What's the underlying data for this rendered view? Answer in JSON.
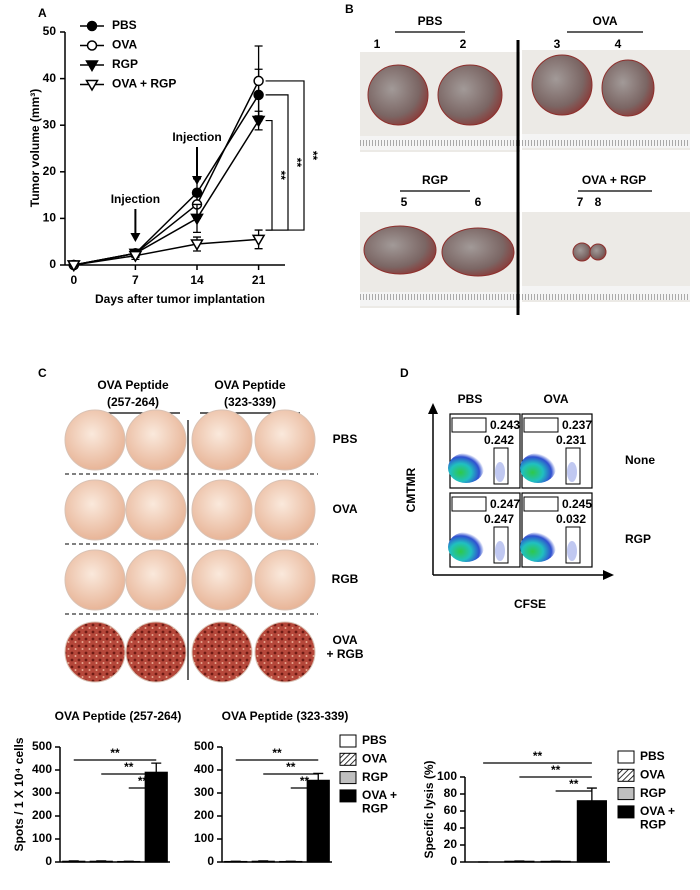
{
  "figure_labels": [
    "A",
    "B",
    "C",
    "D"
  ],
  "chart_data": [
    {
      "type": "line",
      "xlabel": "Days after tumor implantation",
      "ylabel": "Tumor volume (mm³)",
      "x": [
        0,
        7,
        14,
        21
      ],
      "xlim": [
        -1,
        24
      ],
      "xticks": [
        0,
        7,
        14,
        21
      ],
      "ylim": [
        0,
        50
      ],
      "yticks": [
        0,
        10,
        20,
        30,
        40,
        50
      ],
      "legend": "upper left",
      "series": [
        {
          "name": "PBS",
          "color": "#000000",
          "marker": "circle",
          "filled": true,
          "values": [
            0,
            2.5,
            15.5,
            36.5
          ],
          "errors": [
            0.3,
            0.8,
            3,
            5.5
          ]
        },
        {
          "name": "OVA",
          "color": "#000000",
          "marker": "circle",
          "filled": false,
          "values": [
            0,
            2.5,
            13,
            39.5
          ],
          "errors": [
            0.3,
            0.8,
            3,
            7.5
          ]
        },
        {
          "name": "RGP",
          "color": "#000000",
          "marker": "triangle-down",
          "filled": true,
          "values": [
            0,
            2.5,
            10,
            31
          ],
          "errors": [
            0.3,
            0.8,
            3,
            2
          ]
        },
        {
          "name": "OVA + RGP",
          "color": "#000000",
          "marker": "triangle-down",
          "filled": false,
          "values": [
            0,
            2,
            4.5,
            5.5
          ],
          "errors": [
            0.3,
            0.8,
            1.5,
            2
          ]
        }
      ],
      "annotations": [
        {
          "text": "Injection",
          "x": 7
        },
        {
          "text": "Injection",
          "x": 14
        }
      ],
      "significance": [
        "**",
        "**",
        "**"
      ]
    },
    {
      "type": "bar",
      "title": "OVA Peptide (257-264)",
      "ylabel": "Spots / 1 X 10⁴ cells",
      "categories": [
        "PBS",
        "OVA",
        "RGP",
        "OVA + RGP"
      ],
      "values": [
        3,
        3,
        2,
        390
      ],
      "errors": [
        2,
        2,
        1,
        40
      ],
      "colors": [
        "#ffffff",
        "#ffffff",
        "#bfbfbf",
        "#000000"
      ],
      "hatch": [
        false,
        true,
        false,
        false
      ],
      "ylim": [
        0,
        500
      ],
      "yticks": [
        0,
        100,
        200,
        300,
        400,
        500
      ],
      "significance": [
        "**",
        "**",
        "**"
      ]
    },
    {
      "type": "bar",
      "title": "OVA Peptide (323-339)",
      "categories": [
        "PBS",
        "OVA",
        "RGP",
        "OVA + RGP"
      ],
      "values": [
        2,
        3,
        2,
        355
      ],
      "errors": [
        1,
        2,
        1,
        30
      ],
      "colors": [
        "#ffffff",
        "#ffffff",
        "#bfbfbf",
        "#000000"
      ],
      "hatch": [
        false,
        true,
        false,
        false
      ],
      "ylim": [
        0,
        500
      ],
      "yticks": [
        0,
        100,
        200,
        300,
        400,
        500
      ],
      "significance": [
        "**",
        "**",
        "**"
      ],
      "legend": "right"
    },
    {
      "type": "bar",
      "ylabel": "Specific lysis (%)",
      "categories": [
        "PBS",
        "OVA",
        "RGP",
        "OVA + RGP"
      ],
      "values": [
        0,
        0.8,
        0.7,
        72
      ],
      "errors": [
        0,
        0.3,
        0.3,
        15
      ],
      "colors": [
        "#ffffff",
        "#ffffff",
        "#bfbfbf",
        "#000000"
      ],
      "hatch": [
        false,
        true,
        false,
        false
      ],
      "ylim": [
        0,
        100
      ],
      "yticks": [
        0,
        20,
        40,
        60,
        80,
        100
      ],
      "significance": [
        "**",
        "**",
        "**"
      ],
      "legend": "right"
    }
  ],
  "panel_b": {
    "groups": [
      {
        "label": "PBS",
        "samples": [
          "1",
          "2"
        ]
      },
      {
        "label": "OVA",
        "samples": [
          "3",
          "4"
        ]
      },
      {
        "label": "RGP",
        "samples": [
          "5",
          "6"
        ]
      },
      {
        "label": "OVA + RGP",
        "samples": [
          "7",
          "8"
        ]
      }
    ]
  },
  "panel_c": {
    "columns": [
      [
        "OVA Peptide",
        "(257-264)"
      ],
      [
        "OVA Peptide",
        "(323-339)"
      ]
    ],
    "rows": [
      "PBS",
      "OVA",
      "RGB",
      "OVA + RGB"
    ]
  },
  "panel_d": {
    "columns": [
      "PBS",
      "OVA"
    ],
    "rows": [
      "None",
      "RGP"
    ],
    "ylabel": "CMTMR",
    "xlabel": "CFSE",
    "gates": [
      [
        [
          0.243,
          0.242
        ],
        [
          0.237,
          0.231
        ]
      ],
      [
        [
          0.247,
          0.247
        ],
        [
          0.245,
          0.032
        ]
      ]
    ]
  }
}
